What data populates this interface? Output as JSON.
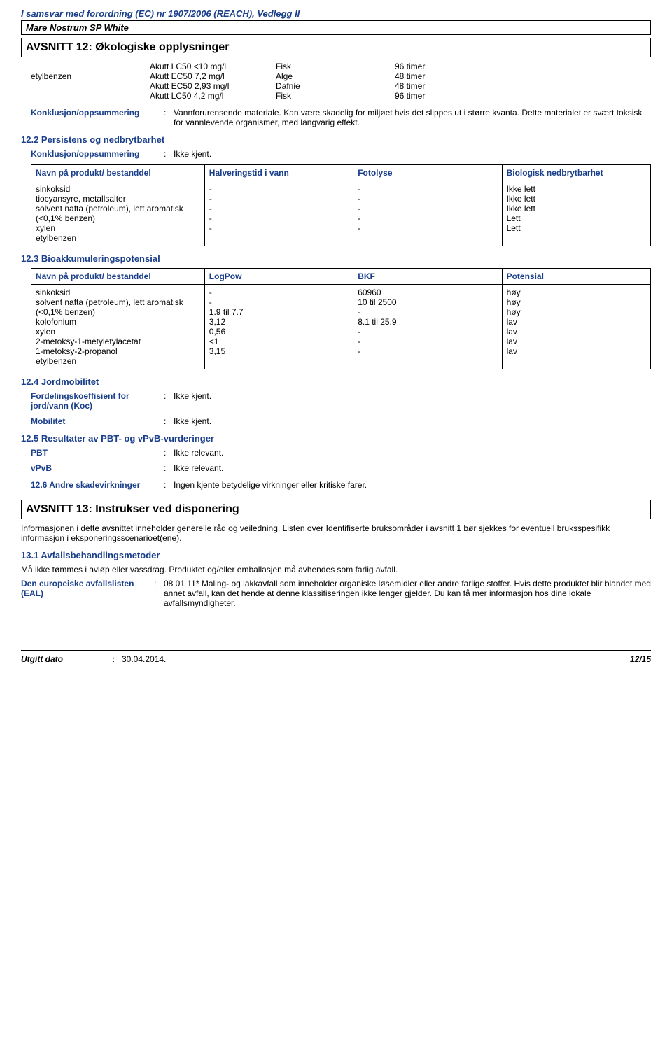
{
  "header": {
    "regulation": "I samsvar med forordning (EC) nr 1907/2006 (REACH), Vedlegg II",
    "product": "Mare Nostrum SP White"
  },
  "section12": {
    "title": "AVSNITT 12: Økologiske opplysninger",
    "acute_table": {
      "substance": "etylbenzen",
      "rows": [
        {
          "test": "Akutt LC50 <10 mg/l",
          "species": "Fisk",
          "time": "96 timer"
        },
        {
          "test": "Akutt EC50 7,2 mg/l",
          "species": "Alge",
          "time": "48 timer"
        },
        {
          "test": "Akutt EC50 2,93 mg/l",
          "species": "Dafnie",
          "time": "48 timer"
        },
        {
          "test": "Akutt LC50 4,2 mg/l",
          "species": "Fisk",
          "time": "96 timer"
        }
      ]
    },
    "conclusion1": {
      "label": "Konklusjon/oppsummering",
      "sep": ":",
      "value": "Vannforurensende materiale. Kan være skadelig for miljøet hvis det slippes ut i større kvanta. Dette materialet er svært toksisk for vannlevende organismer, med langvarig effekt."
    },
    "s12_2": {
      "heading": "12.2 Persistens og nedbrytbarhet",
      "conclusion": {
        "label": "Konklusjon/oppsummering",
        "sep": ":",
        "value": "Ikke kjent."
      },
      "table": {
        "headers": [
          "Navn på produkt/\nbestanddel",
          "Halveringstid i vann",
          "Fotolyse",
          "Biologisk nedbrytbarhet"
        ],
        "rows": [
          [
            "sinkoksid",
            "-",
            "-",
            "Ikke lett"
          ],
          [
            "tiocyansyre, metallsalter",
            "-",
            "-",
            "Ikke lett"
          ],
          [
            "solvent nafta (petroleum), lett aromatisk (<0,1% benzen)",
            "-",
            "-",
            "Ikke lett"
          ],
          [
            "xylen",
            "-",
            "-",
            "Lett"
          ],
          [
            "etylbenzen",
            "-",
            "-",
            "Lett"
          ]
        ]
      }
    },
    "s12_3": {
      "heading": "12.3 Bioakkumuleringspotensial",
      "table": {
        "headers": [
          "Navn på produkt/\nbestanddel",
          "LogPow",
          "BKF",
          "Potensial"
        ],
        "rows": [
          [
            "sinkoksid",
            "-",
            "60960",
            "høy"
          ],
          [
            "solvent nafta (petroleum), lett aromatisk (<0,1% benzen)",
            "-",
            "10 til 2500",
            "høy"
          ],
          [
            "kolofonium",
            "1.9 til 7.7",
            "-",
            "høy"
          ],
          [
            "xylen",
            "3,12",
            "8.1 til 25.9",
            "lav"
          ],
          [
            "2-metoksy-1-metyletylacetat",
            "0,56",
            "-",
            "lav"
          ],
          [
            "1-metoksy-2-propanol",
            "<1",
            "-",
            "lav"
          ],
          [
            "etylbenzen",
            "3,15",
            "-",
            "lav"
          ]
        ]
      }
    },
    "s12_4": {
      "heading": "12.4 Jordmobilitet",
      "rows": [
        {
          "label": "Fordelingskoeffisient for jord/vann (Koc)",
          "sep": ":",
          "value": "Ikke kjent."
        },
        {
          "label": "Mobilitet",
          "sep": ":",
          "value": "Ikke kjent."
        }
      ]
    },
    "s12_5": {
      "heading": "12.5 Resultater av PBT- og vPvB-vurderinger",
      "rows": [
        {
          "label": "PBT",
          "sep": ":",
          "value": "Ikke relevant."
        },
        {
          "label": "vPvB",
          "sep": ":",
          "value": "Ikke relevant."
        }
      ]
    },
    "s12_6": {
      "label": "12.6 Andre skadevirkninger",
      "sep": ":",
      "value": "Ingen kjente betydelige virkninger eller kritiske farer."
    }
  },
  "section13": {
    "title": "AVSNITT 13: Instrukser ved disponering",
    "intro": "Informasjonen i dette avsnittet inneholder generelle råd og veiledning. Listen over Identifiserte bruksområder i avsnitt 1 bør sjekkes for eventuell bruksspesifikk informasjon i eksponeringsscenarioet(ene).",
    "s13_1": {
      "heading": "13.1 Avfallsbehandlingsmetoder",
      "line1": "Må ikke tømmes i avløp eller vassdrag. Produktet og/eller emballasjen må avhendes som farlig avfall.",
      "eal": {
        "label": "Den europeiske avfallslisten (EAL)",
        "sep": ":",
        "value": "08 01 11* Maling- og lakkavfall som inneholder organiske løsemidler eller andre farlige stoffer. Hvis dette produktet blir blandet med annet avfall, kan det hende at denne klassifiseringen ikke lenger gjelder. Du kan få mer informasjon hos dine lokale avfallsmyndigheter."
      }
    }
  },
  "footer": {
    "date_label": "Utgitt dato",
    "sep": ":",
    "date_value": "30.04.2014.",
    "page": "12/15"
  }
}
